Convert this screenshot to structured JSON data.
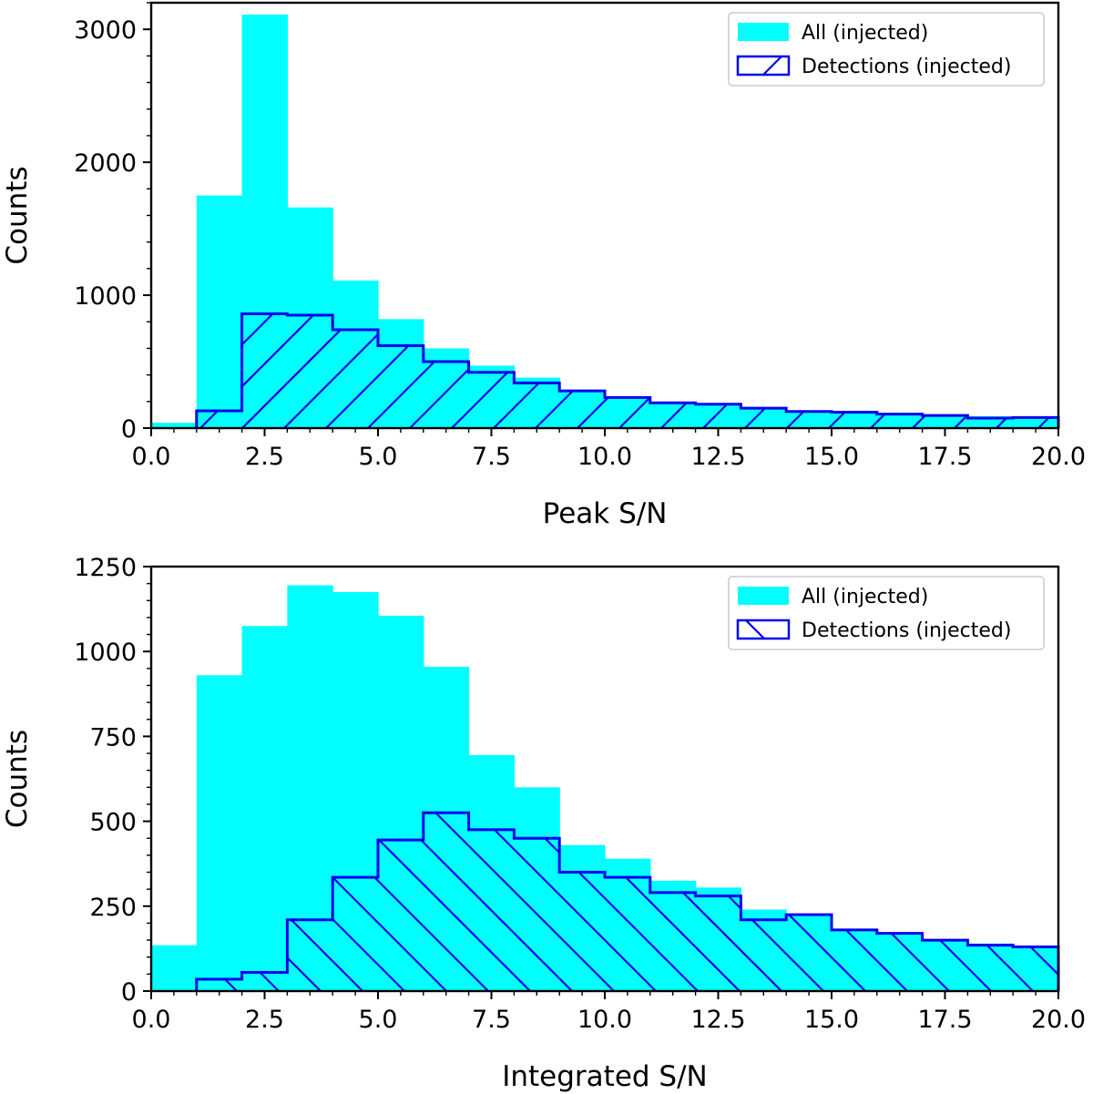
{
  "colors": {
    "all": "#00ffff",
    "detections": "#0000ee"
  },
  "chart_data": [
    {
      "type": "bar",
      "title": "",
      "xlabel": "Peak S/N",
      "ylabel": "Counts",
      "xlim": [
        0,
        20
      ],
      "ylim": [
        0,
        3200
      ],
      "xticks": [
        0,
        2.5,
        5,
        7.5,
        10,
        12.5,
        15,
        17.5,
        20
      ],
      "xtick_labels": [
        "0.0",
        "2.5",
        "5.0",
        "7.5",
        "10.0",
        "12.5",
        "15.0",
        "17.5",
        "20.0"
      ],
      "yticks": [
        0,
        1000,
        2000,
        3000
      ],
      "ytick_labels": [
        "0",
        "1000",
        "2000",
        "3000"
      ],
      "bin_edges": [
        0,
        1,
        2,
        3,
        4,
        5,
        6,
        7,
        8,
        9,
        10,
        11,
        12,
        13,
        14,
        15,
        16,
        17,
        18,
        19,
        20
      ],
      "series": [
        {
          "name": "All (injected)",
          "style": "filled",
          "values": [
            40,
            1750,
            3110,
            1660,
            1110,
            820,
            600,
            470,
            380,
            290,
            230,
            190,
            180,
            150,
            130,
            120,
            110,
            100,
            90,
            85
          ]
        },
        {
          "name": "Detections (injected)",
          "style": "hatched",
          "values": [
            0,
            130,
            860,
            850,
            740,
            620,
            500,
            420,
            340,
            280,
            230,
            190,
            180,
            150,
            125,
            120,
            105,
            95,
            75,
            80
          ]
        }
      ],
      "legend": {
        "position": "top-right",
        "entries": [
          "All (injected)",
          "Detections (injected)"
        ]
      }
    },
    {
      "type": "bar",
      "title": "",
      "xlabel": "Integrated S/N",
      "ylabel": "Counts",
      "xlim": [
        0,
        20
      ],
      "ylim": [
        0,
        1250
      ],
      "xticks": [
        0,
        2.5,
        5,
        7.5,
        10,
        12.5,
        15,
        17.5,
        20
      ],
      "xtick_labels": [
        "0.0",
        "2.5",
        "5.0",
        "7.5",
        "10.0",
        "12.5",
        "15.0",
        "17.5",
        "20.0"
      ],
      "yticks": [
        0,
        250,
        500,
        750,
        1000,
        1250
      ],
      "ytick_labels": [
        "0",
        "250",
        "500",
        "750",
        "1000",
        "1250"
      ],
      "bin_edges": [
        0,
        1,
        2,
        3,
        4,
        5,
        6,
        7,
        8,
        9,
        10,
        11,
        12,
        13,
        14,
        15,
        16,
        17,
        18,
        19,
        20
      ],
      "series": [
        {
          "name": "All (injected)",
          "style": "filled",
          "values": [
            135,
            930,
            1075,
            1195,
            1175,
            1105,
            955,
            695,
            600,
            430,
            390,
            325,
            305,
            240,
            225,
            180,
            170,
            150,
            140,
            130
          ]
        },
        {
          "name": "Detections (injected)",
          "style": "hatched",
          "values": [
            0,
            35,
            55,
            210,
            335,
            445,
            525,
            475,
            450,
            350,
            335,
            290,
            280,
            210,
            225,
            180,
            170,
            150,
            135,
            130
          ]
        }
      ],
      "legend": {
        "position": "top-right",
        "entries": [
          "All (injected)",
          "Detections (injected)"
        ]
      }
    }
  ]
}
